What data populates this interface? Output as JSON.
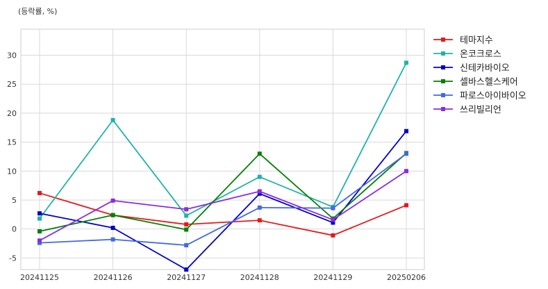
{
  "chart_data": {
    "type": "line",
    "unit_label": "(등락률, %)",
    "categories": [
      "20241125",
      "20241126",
      "20241127",
      "20241128",
      "20241129",
      "20250206"
    ],
    "ylim": [
      -7,
      34.5
    ],
    "yticks": [
      -5,
      0,
      5,
      10,
      15,
      20,
      25,
      30
    ],
    "grid": true,
    "legend_position": "right",
    "marker": "square",
    "series": [
      {
        "name": "테마지수",
        "color": "#e31a1c",
        "values": [
          6.2,
          2.4,
          0.8,
          1.5,
          -1.1,
          4.1
        ]
      },
      {
        "name": "온코크로스",
        "color": "#20b2aa",
        "values": [
          1.8,
          18.8,
          2.3,
          9.0,
          3.8,
          28.7
        ]
      },
      {
        "name": "신테카바이오",
        "color": "#0000cd",
        "values": [
          2.7,
          0.2,
          -7.0,
          6.1,
          1.1,
          16.9
        ]
      },
      {
        "name": "셀바스헬스케어",
        "color": "#008000",
        "values": [
          -0.4,
          2.4,
          -0.1,
          13.0,
          1.8,
          13.1
        ]
      },
      {
        "name": "파로스아이바이오",
        "color": "#4169e1",
        "values": [
          -2.4,
          -1.8,
          -2.8,
          3.7,
          3.6,
          13.0
        ]
      },
      {
        "name": "쓰리빌리언",
        "color": "#8a2be2",
        "values": [
          -2.0,
          4.9,
          3.4,
          6.5,
          1.6,
          10.0
        ]
      }
    ]
  }
}
